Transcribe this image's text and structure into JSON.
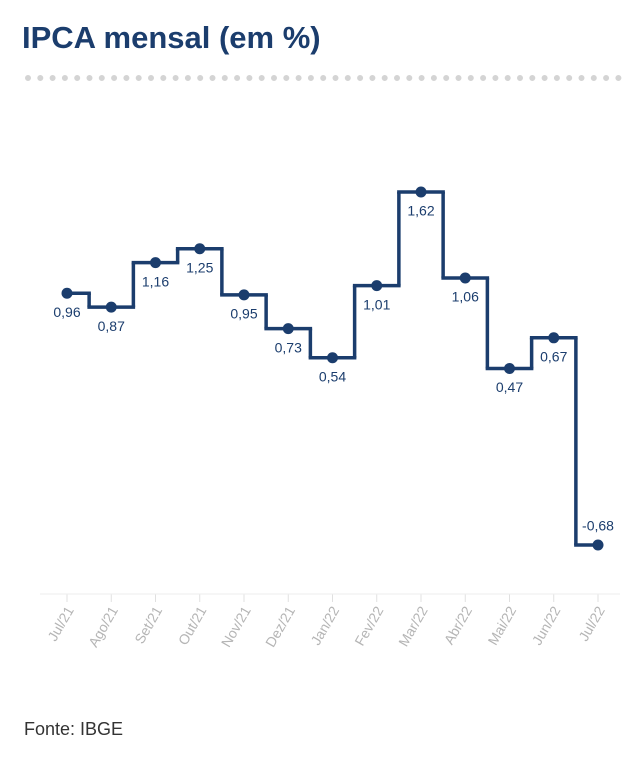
{
  "chart_data": {
    "type": "step-line",
    "title": "IPCA mensal (em %)",
    "source": "Fonte: IBGE",
    "categories": [
      "Jul/21",
      "Ago/21",
      "Set/21",
      "Out/21",
      "Nov/21",
      "Dez/21",
      "Jan/22",
      "Fev/22",
      "Mar/22",
      "Abr/22",
      "Mai/22",
      "Jun/22",
      "Jul/22"
    ],
    "values": [
      0.96,
      0.87,
      1.16,
      1.25,
      0.95,
      0.73,
      0.54,
      1.01,
      1.62,
      1.06,
      0.47,
      0.67,
      -0.68
    ],
    "value_labels": [
      "0,96",
      "0,87",
      "1,16",
      "1,25",
      "0,95",
      "0,73",
      "0,54",
      "1,01",
      "1,62",
      "1,06",
      "0,47",
      "0,67",
      "-0,68"
    ],
    "color": "#1b3d6d"
  }
}
